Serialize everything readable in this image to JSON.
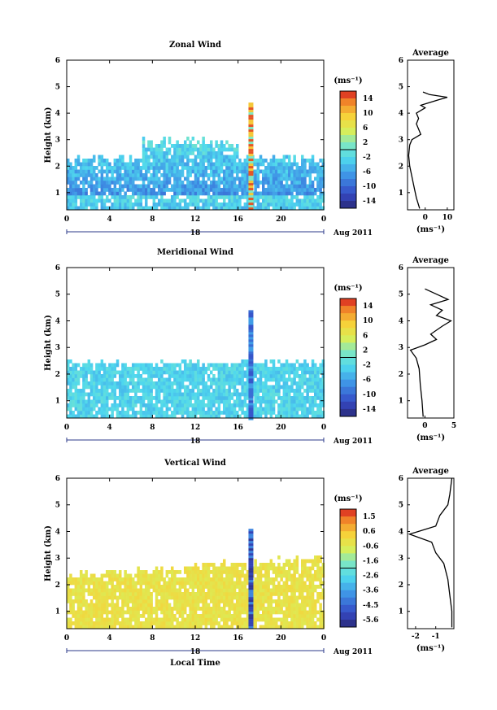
{
  "chart_data": [
    {
      "type": "heatmap",
      "title": "Zonal Wind",
      "ylabel": "Height (km)",
      "x_ticks": [
        "0",
        "4",
        "8",
        "12",
        "16",
        "20",
        "0"
      ],
      "y_ticks": [
        "1",
        "2",
        "3",
        "4",
        "5",
        "6"
      ],
      "date_tick": "18",
      "date_label": "Aug 2011",
      "colorbar": {
        "unit": "(ms⁻¹)",
        "ticks": [
          "14",
          "10",
          "6",
          "2",
          "-2",
          "-6",
          "-10",
          "-14"
        ],
        "min": -16,
        "max": 16
      },
      "average": {
        "title": "Average",
        "xlabel": "(ms⁻¹)",
        "x_ticks": [
          "0",
          "10"
        ],
        "xlim": [
          -8,
          13
        ],
        "profile": [
          [
            -2.5,
            0.4
          ],
          [
            -4,
            0.8
          ],
          [
            -5,
            1.2
          ],
          [
            -6,
            1.6
          ],
          [
            -7,
            2.0
          ],
          [
            -7.5,
            2.4
          ],
          [
            -7,
            2.8
          ],
          [
            -6,
            3.0
          ],
          [
            -2,
            3.2
          ],
          [
            -3,
            3.4
          ],
          [
            -4,
            3.6
          ],
          [
            -3,
            3.8
          ],
          [
            -4,
            4.0
          ],
          [
            0,
            4.2
          ],
          [
            -2,
            4.3
          ],
          [
            6,
            4.5
          ],
          [
            10,
            4.6
          ],
          [
            2,
            4.7
          ],
          [
            -1,
            4.8
          ]
        ]
      }
    },
    {
      "type": "heatmap",
      "title": "Meridional Wind",
      "ylabel": "Height (km)",
      "x_ticks": [
        "0",
        "4",
        "8",
        "12",
        "16",
        "20",
        "0"
      ],
      "y_ticks": [
        "1",
        "2",
        "3",
        "4",
        "5",
        "6"
      ],
      "date_tick": "18",
      "date_label": "Aug 2011",
      "colorbar": {
        "unit": "(ms⁻¹)",
        "ticks": [
          "14",
          "10",
          "6",
          "2",
          "-2",
          "-6",
          "-10",
          "-14"
        ],
        "min": -16,
        "max": 16
      },
      "average": {
        "title": "Average",
        "xlabel": "(ms⁻¹)",
        "x_ticks": [
          "0",
          "5"
        ],
        "xlim": [
          -3,
          5
        ],
        "profile": [
          [
            -0.3,
            0.4
          ],
          [
            -0.5,
            1.0
          ],
          [
            -0.8,
            1.6
          ],
          [
            -1,
            2.2
          ],
          [
            -1.5,
            2.6
          ],
          [
            -2.5,
            2.9
          ],
          [
            0,
            3.1
          ],
          [
            2,
            3.3
          ],
          [
            1,
            3.5
          ],
          [
            3,
            3.8
          ],
          [
            4.5,
            4.0
          ],
          [
            2,
            4.2
          ],
          [
            3,
            4.4
          ],
          [
            1,
            4.6
          ],
          [
            4,
            4.8
          ],
          [
            2,
            5.0
          ],
          [
            0,
            5.2
          ]
        ]
      }
    },
    {
      "type": "heatmap",
      "title": "Vertical Wind",
      "ylabel": "Height (km)",
      "xlabel": "Local Time",
      "x_ticks": [
        "0",
        "4",
        "8",
        "12",
        "16",
        "20",
        "0"
      ],
      "y_ticks": [
        "1",
        "2",
        "3",
        "4",
        "5",
        "6"
      ],
      "date_tick": "18",
      "date_label": "Aug 2011",
      "colorbar": {
        "unit": "(ms⁻¹)",
        "ticks": [
          "1.5",
          "0.6",
          "-0.6",
          "-1.6",
          "-2.6",
          "-3.6",
          "-4.5",
          "-5.6"
        ],
        "min": -6,
        "max": 2
      },
      "average": {
        "title": "Average",
        "xlabel": "(ms⁻¹)",
        "x_ticks": [
          "-2",
          "-1"
        ],
        "xlim": [
          -2.4,
          -0.1
        ],
        "profile": [
          [
            -0.2,
            0.4
          ],
          [
            -0.2,
            1.0
          ],
          [
            -0.3,
            1.6
          ],
          [
            -0.4,
            2.2
          ],
          [
            -0.6,
            2.8
          ],
          [
            -1.0,
            3.2
          ],
          [
            -1.2,
            3.6
          ],
          [
            -2.3,
            3.9
          ],
          [
            -1.0,
            4.2
          ],
          [
            -0.8,
            4.6
          ],
          [
            -0.4,
            5.0
          ],
          [
            -0.3,
            5.4
          ],
          [
            -0.2,
            6.0
          ]
        ]
      }
    }
  ]
}
